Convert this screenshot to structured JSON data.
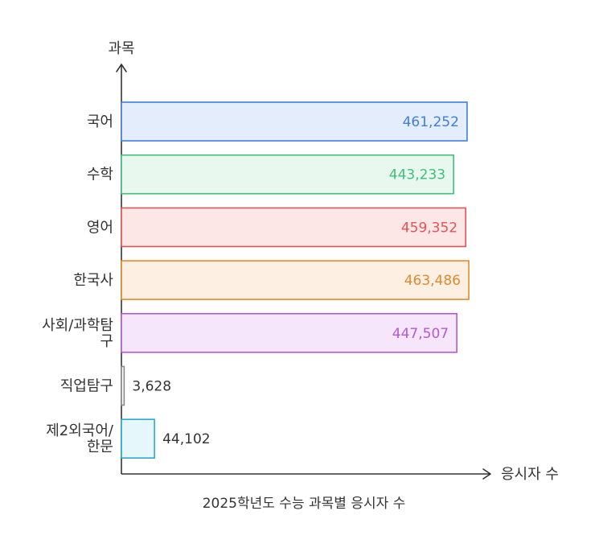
{
  "chart_data": {
    "type": "bar",
    "orientation": "horizontal",
    "title": "2025학년도 수능 과목별 응시자 수",
    "xlabel": "응시자 수",
    "ylabel": "과목",
    "categories": [
      [
        "국어"
      ],
      [
        "수학"
      ],
      [
        "영어"
      ],
      [
        "한국사"
      ],
      [
        "사회/과학탐",
        "구"
      ],
      [
        "직업탐구"
      ],
      [
        "제2외국어/",
        "한문"
      ]
    ],
    "values": [
      461252,
      443233,
      459352,
      463486,
      447507,
      3628,
      44102
    ],
    "value_labels": [
      "461,252",
      "443,233",
      "459,352",
      "463,486",
      "447,507",
      "3,628",
      "44,102"
    ],
    "colors": [
      {
        "stroke": "#3f7fdc",
        "fill": "#e3edfc",
        "text": "#3f7fdc"
      },
      {
        "stroke": "#3fbf7a",
        "fill": "#e8f8ef",
        "text": "#3fbf7a"
      },
      {
        "stroke": "#e05555",
        "fill": "#fde6e6",
        "text": "#e05555"
      },
      {
        "stroke": "#e08a2e",
        "fill": "#fdf0e3",
        "text": "#e08a2e"
      },
      {
        "stroke": "#b05ad6",
        "fill": "#f5e6fc",
        "text": "#b05ad6"
      },
      {
        "stroke": "#888888",
        "fill": "#ffffff",
        "text": "#333333"
      },
      {
        "stroke": "#2aa8d0",
        "fill": "#e6f7fc",
        "text": "#333333"
      }
    ],
    "xlim": [
      0,
      463486
    ],
    "grid": false,
    "legend": "none"
  }
}
